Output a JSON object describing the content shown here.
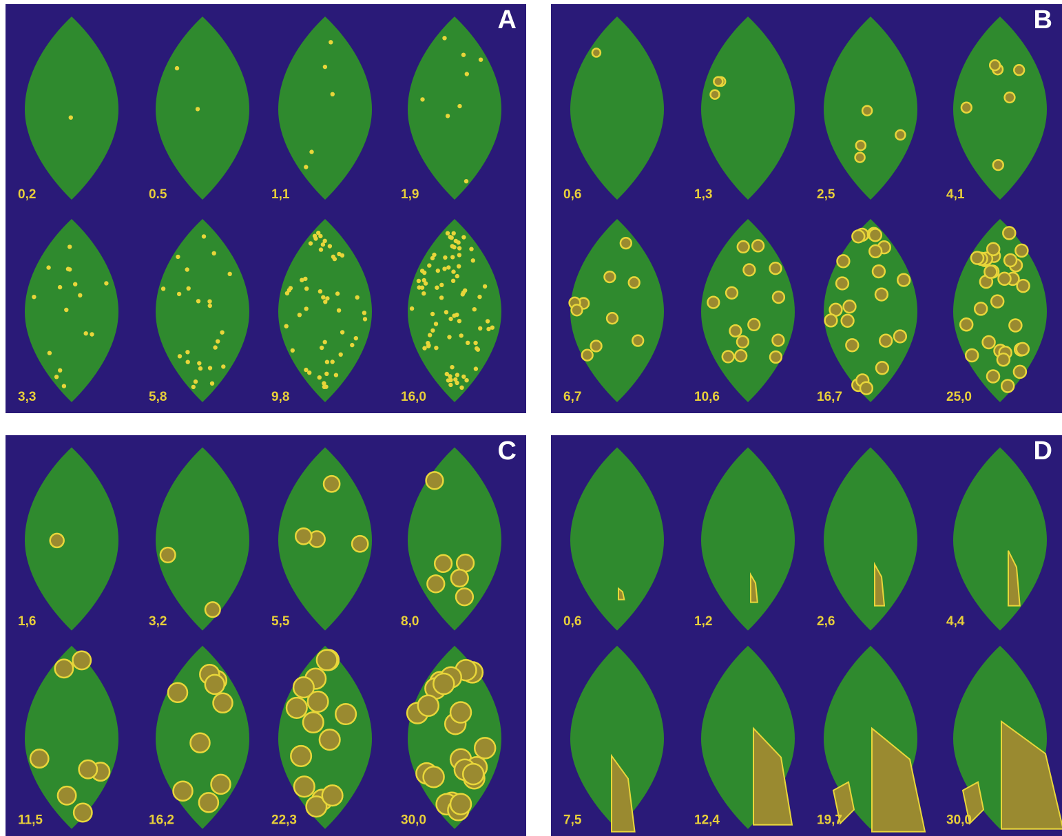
{
  "colors": {
    "background": "#2a1a78",
    "leaf": "#2f8a2e",
    "lesion_ring": "#e8d63a",
    "lesion_core": "#9a8a30",
    "label": "#e8cf3a",
    "panel_letter": "#ffffff"
  },
  "panels": [
    {
      "letter": "A",
      "values": [
        "0,2",
        "0.5",
        "1,1",
        "1,9",
        "3,3",
        "5,8",
        "9,8",
        "16,0"
      ]
    },
    {
      "letter": "B",
      "values": [
        "0,6",
        "1,3",
        "2,5",
        "4,1",
        "6,7",
        "10,6",
        "16,7",
        "25,0"
      ]
    },
    {
      "letter": "C",
      "values": [
        "1,6",
        "3,2",
        "5,5",
        "8,0",
        "11,5",
        "16,2",
        "22,3",
        "30,0"
      ]
    },
    {
      "letter": "D",
      "values": [
        "0,6",
        "1,2",
        "2,6",
        "4,4",
        "7,5",
        "12,4",
        "19,7",
        "30,0"
      ]
    }
  ]
}
